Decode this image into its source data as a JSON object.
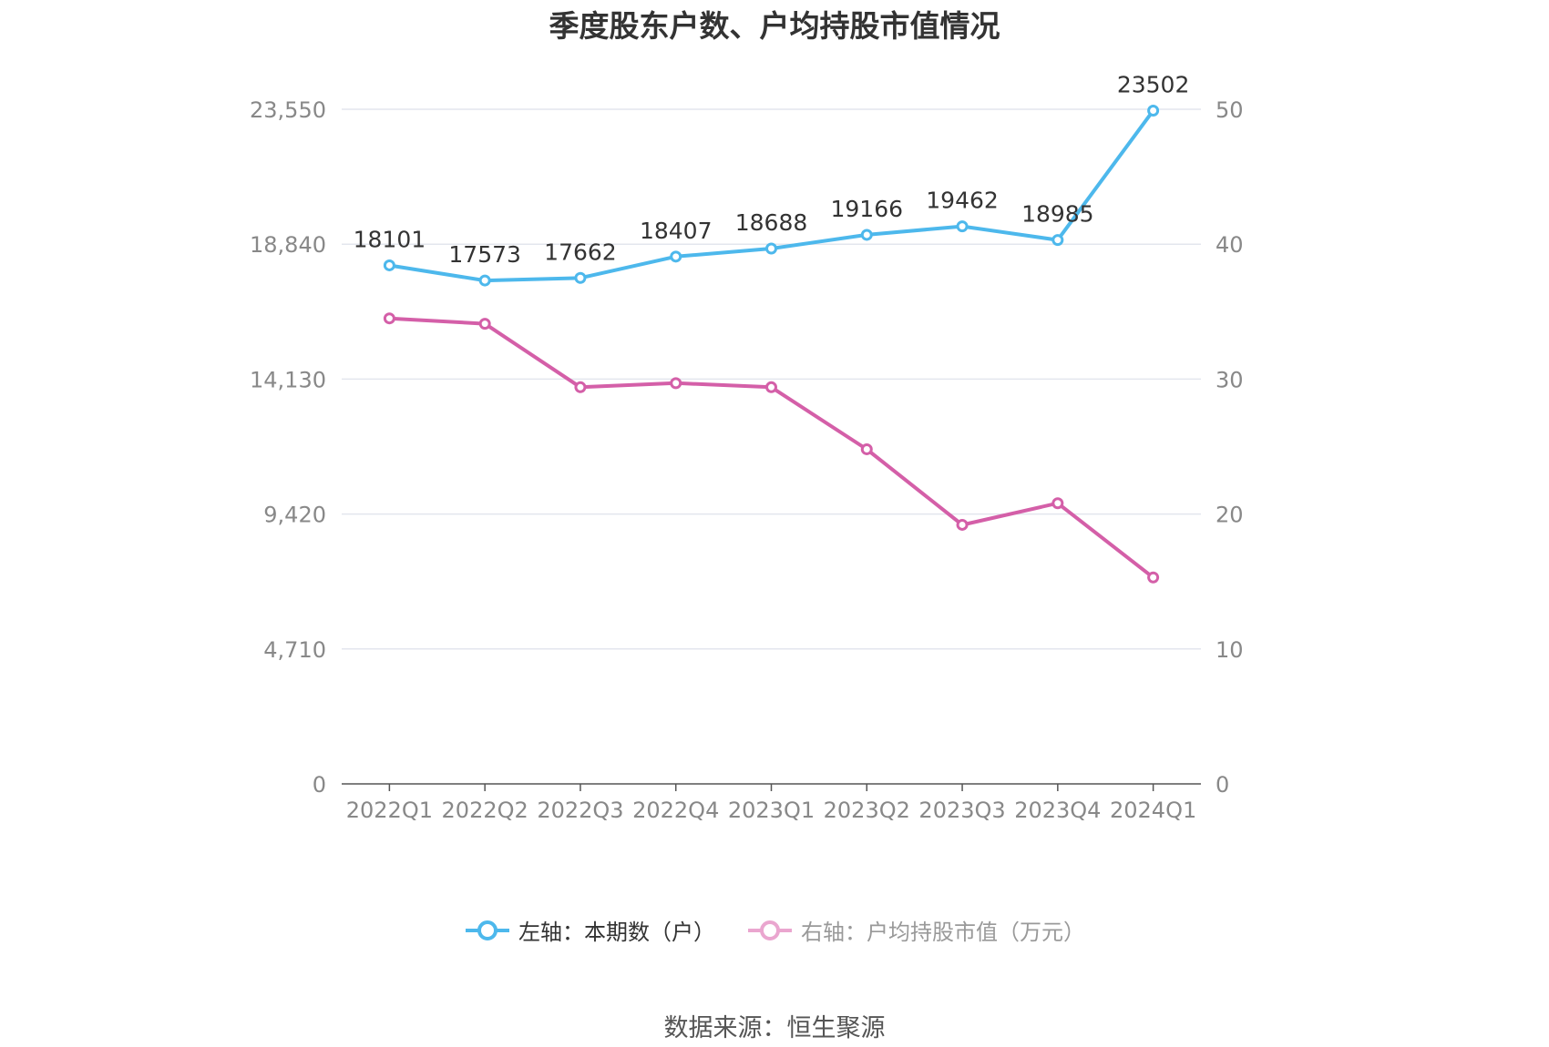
{
  "chart_data": {
    "type": "line",
    "title": "季度股东户数、户均持股市值情况",
    "categories": [
      "2022Q1",
      "2022Q2",
      "2022Q3",
      "2022Q4",
      "2023Q1",
      "2023Q2",
      "2023Q3",
      "2023Q4",
      "2024Q1"
    ],
    "left_axis": {
      "ylim": [
        0,
        23550
      ],
      "ticks": [
        0,
        4710,
        9420,
        14130,
        18840,
        23550
      ],
      "tick_labels": [
        "0",
        "4,710",
        "9,420",
        "14,130",
        "18,840",
        "23,550"
      ]
    },
    "right_axis": {
      "ylim": [
        0,
        50
      ],
      "ticks": [
        0,
        10,
        20,
        30,
        40,
        50
      ],
      "tick_labels": [
        "0",
        "10",
        "20",
        "30",
        "40",
        "50"
      ]
    },
    "series": [
      {
        "name": "左轴：本期数（户）",
        "axis": "left",
        "color": "#4db8ec",
        "values": [
          18101,
          17573,
          17662,
          18407,
          18688,
          19166,
          19462,
          18985,
          23502
        ],
        "data_labels": [
          "18101",
          "17573",
          "17662",
          "18407",
          "18688",
          "19166",
          "19462",
          "18985",
          "23502"
        ]
      },
      {
        "name": "右轴：户均持股市值（万元）",
        "axis": "right",
        "color": "#d45fa8",
        "values": [
          34.5,
          34.1,
          29.4,
          29.7,
          29.4,
          24.8,
          19.2,
          20.8,
          15.3
        ]
      }
    ],
    "grid": true,
    "legend_position": "bottom-center"
  },
  "legend": {
    "item1": "左轴：本期数（户）",
    "item2": "右轴：户均持股市值（万元）",
    "item1_color": "#4db8ec",
    "item2_color": "#eaa6cf"
  },
  "source": "数据来源：恒生聚源"
}
